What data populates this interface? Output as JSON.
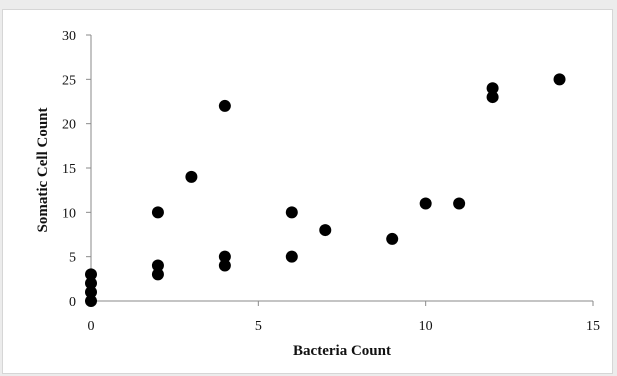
{
  "chart_data": {
    "type": "scatter",
    "title": "",
    "xlabel": "Bacteria Count",
    "ylabel": "Somatic Cell Count",
    "xlim": [
      0,
      15
    ],
    "ylim": [
      0,
      30
    ],
    "xticks": [
      0,
      5,
      10,
      15
    ],
    "yticks": [
      0,
      5,
      10,
      15,
      20,
      25,
      30
    ],
    "grid": false,
    "legend": "none",
    "marker_color": "#000000",
    "points": [
      {
        "x": 0,
        "y": 0
      },
      {
        "x": 0,
        "y": 1
      },
      {
        "x": 0,
        "y": 2
      },
      {
        "x": 0,
        "y": 3
      },
      {
        "x": 2,
        "y": 3
      },
      {
        "x": 2,
        "y": 4
      },
      {
        "x": 2,
        "y": 10
      },
      {
        "x": 3,
        "y": 14
      },
      {
        "x": 4,
        "y": 4
      },
      {
        "x": 4,
        "y": 5
      },
      {
        "x": 4,
        "y": 22
      },
      {
        "x": 6,
        "y": 5
      },
      {
        "x": 6,
        "y": 10
      },
      {
        "x": 7,
        "y": 8
      },
      {
        "x": 9,
        "y": 7
      },
      {
        "x": 10,
        "y": 11
      },
      {
        "x": 11,
        "y": 11
      },
      {
        "x": 12,
        "y": 23
      },
      {
        "x": 12,
        "y": 24
      },
      {
        "x": 14,
        "y": 25
      }
    ]
  }
}
